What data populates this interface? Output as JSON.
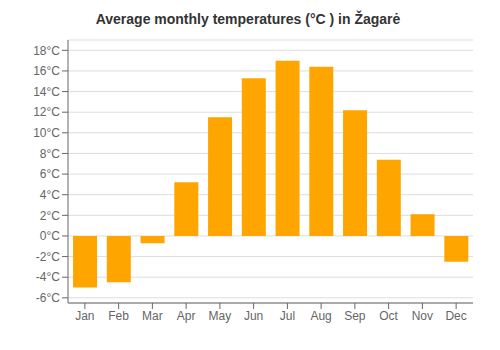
{
  "chart_data": {
    "type": "bar",
    "title": "Average monthly temperatures (°C ) in Žagarė",
    "categories": [
      "Jan",
      "Feb",
      "Mar",
      "Apr",
      "May",
      "Jun",
      "Jul",
      "Aug",
      "Sep",
      "Oct",
      "Nov",
      "Dec"
    ],
    "values": [
      -5.0,
      -4.5,
      -0.7,
      5.2,
      11.5,
      15.3,
      17.0,
      16.4,
      12.2,
      7.4,
      2.1,
      -2.5
    ],
    "color": "#FFA500",
    "ylim": [
      -6.5,
      19
    ],
    "yticks": [
      {
        "value": -6,
        "label": "-6°C"
      },
      {
        "value": -4,
        "label": "-4°C"
      },
      {
        "value": -2,
        "label": "-2°C"
      },
      {
        "value": 0,
        "label": "0°C"
      },
      {
        "value": 2,
        "label": "2°C"
      },
      {
        "value": 4,
        "label": "4°C"
      },
      {
        "value": 6,
        "label": "6°C"
      },
      {
        "value": 8,
        "label": "8°C"
      },
      {
        "value": 10,
        "label": "10°C"
      },
      {
        "value": 12,
        "label": "12°C"
      },
      {
        "value": 14,
        "label": "14°C"
      },
      {
        "value": 16,
        "label": "16°C"
      },
      {
        "value": 18,
        "label": "18°C"
      }
    ],
    "grid": true
  }
}
